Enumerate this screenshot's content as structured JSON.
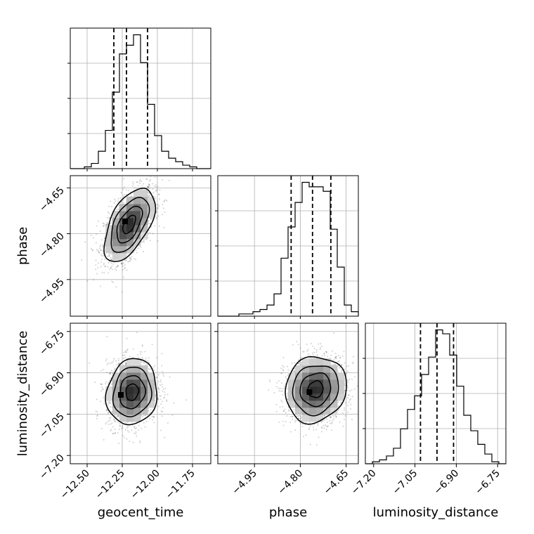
{
  "chart_data": {
    "type": "corner",
    "parameters": [
      "geocent_time",
      "phase",
      "luminosity_distance"
    ],
    "grid": true,
    "ranges": {
      "geocent_time": [
        -12.62,
        -11.62
      ],
      "phase": [
        -5.07,
        -4.61
      ],
      "luminosity_distance": [
        -7.23,
        -6.72
      ]
    },
    "ticks": {
      "geocent_time": {
        "values": [
          -12.5,
          -12.25,
          -12.0,
          -11.75
        ],
        "labels": [
          "−12.50",
          "−12.25",
          "−12.00",
          "−11.75"
        ]
      },
      "phase": {
        "values": [
          -4.95,
          -4.8,
          -4.65
        ],
        "labels": [
          "−4.95",
          "−4.80",
          "−4.65"
        ]
      },
      "luminosity_distance": {
        "values": [
          -7.2,
          -7.05,
          -6.9,
          -6.75
        ],
        "labels": [
          "−7.20",
          "−7.05",
          "−6.90",
          "−6.75"
        ]
      }
    },
    "quantiles": {
      "geocent_time": [
        -12.31,
        -12.22,
        -12.07
      ],
      "phase": [
        -4.83,
        -4.76,
        -4.7
      ],
      "luminosity_distance": [
        -7.03,
        -6.97,
        -6.91
      ]
    },
    "histograms": {
      "geocent_time": {
        "bin_edges": [
          -12.62,
          -12.57,
          -12.52,
          -12.47,
          -12.42,
          -12.37,
          -12.32,
          -12.27,
          -12.22,
          -12.17,
          -12.12,
          -12.07,
          -12.02,
          -11.97,
          -11.92,
          -11.87,
          -11.82,
          -11.77,
          -11.72,
          -11.67,
          -11.62
        ],
        "counts": [
          0,
          0,
          1,
          3,
          10,
          22,
          44,
          66,
          71,
          77,
          61,
          37,
          19,
          10,
          6,
          4,
          2,
          1,
          0,
          0
        ]
      },
      "phase": {
        "bin_edges": [
          -5.07,
          -5.047,
          -5.024,
          -5.001,
          -4.978,
          -4.955,
          -4.932,
          -4.909,
          -4.886,
          -4.863,
          -4.84,
          -4.817,
          -4.794,
          -4.771,
          -4.748,
          -4.725,
          -4.702,
          -4.679,
          -4.656,
          -4.633,
          -4.61
        ],
        "counts": [
          0,
          0,
          0,
          1,
          1,
          2,
          3,
          5,
          10,
          26,
          40,
          51,
          60,
          58,
          58,
          56,
          39,
          22,
          5,
          2
        ]
      },
      "luminosity_distance": {
        "bin_edges": [
          -7.23,
          -7.2045,
          -7.179,
          -7.1535,
          -7.128,
          -7.1025,
          -7.077,
          -7.0515,
          -7.026,
          -7.0005,
          -6.975,
          -6.9495,
          -6.924,
          -6.8985,
          -6.873,
          -6.8475,
          -6.822,
          -6.7965,
          -6.771,
          -6.7455,
          -6.72
        ],
        "counts": [
          0,
          1,
          2,
          4,
          8,
          18,
          28,
          35,
          46,
          55,
          69,
          67,
          56,
          40,
          25,
          17,
          10,
          5,
          1,
          0
        ]
      }
    },
    "pairs": [
      {
        "x": "geocent_time",
        "y": "phase",
        "mean": [
          -12.2,
          -4.77
        ],
        "sigma": [
          0.09,
          0.06
        ],
        "rho": 0.55,
        "peak": [
          -12.23,
          -4.76
        ],
        "contour_levels": [
          0.5,
          1.0,
          1.5,
          2.0
        ]
      },
      {
        "x": "geocent_time",
        "y": "luminosity_distance",
        "mean": [
          -12.18,
          -6.97
        ],
        "sigma": [
          0.09,
          0.06
        ],
        "rho": 0.1,
        "peak": [
          -12.26,
          -6.98
        ],
        "contour_levels": [
          0.5,
          1.0,
          1.5,
          2.0
        ]
      },
      {
        "x": "phase",
        "y": "luminosity_distance",
        "mean": [
          -4.75,
          -6.96
        ],
        "sigma": [
          0.05,
          0.06
        ],
        "rho": 0.1,
        "peak": [
          -4.77,
          -6.97
        ],
        "contour_levels": [
          0.5,
          1.0,
          1.5,
          2.0
        ]
      }
    ]
  }
}
